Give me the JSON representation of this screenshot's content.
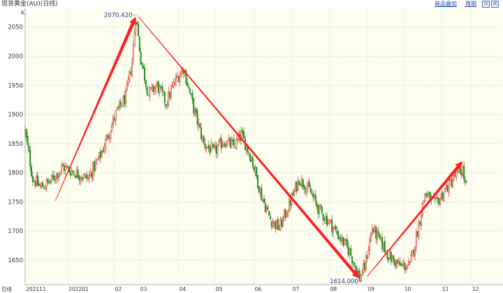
{
  "header": {
    "title": "现货黄金(AU)(日线)",
    "link_add": "商品叠加",
    "link_period": "周期",
    "btn_a": "⊟",
    "btn_b": "⊞"
  },
  "chart_data": {
    "type": "candlestick",
    "unit_label": "K",
    "ylim": [
      1608,
      2082
    ],
    "y_ticks": [
      1650,
      1700,
      1750,
      1800,
      1850,
      1900,
      1950,
      2000,
      2050
    ],
    "x_tick_labels": [
      "202111",
      "202201",
      "02",
      "03",
      "04",
      "05",
      "06",
      "07",
      "08",
      "09",
      "10",
      "11",
      "12"
    ],
    "corner_label": "日线",
    "annotations": {
      "high": "2070.420",
      "low": "1614.000"
    },
    "anchors": [
      [
        0,
        1870
      ],
      [
        6,
        1790
      ],
      [
        12,
        1775
      ],
      [
        20,
        1785
      ],
      [
        30,
        1810
      ],
      [
        40,
        1800
      ],
      [
        50,
        1790
      ],
      [
        60,
        1830
      ],
      [
        72,
        1900
      ],
      [
        80,
        1930
      ],
      [
        85,
        1990
      ],
      [
        88,
        2070
      ],
      [
        92,
        1995
      ],
      [
        98,
        1935
      ],
      [
        105,
        1950
      ],
      [
        112,
        1920
      ],
      [
        120,
        1960
      ],
      [
        126,
        1980
      ],
      [
        134,
        1910
      ],
      [
        142,
        1850
      ],
      [
        150,
        1835
      ],
      [
        158,
        1855
      ],
      [
        166,
        1845
      ],
      [
        172,
        1865
      ],
      [
        180,
        1825
      ],
      [
        188,
        1760
      ],
      [
        195,
        1720
      ],
      [
        202,
        1705
      ],
      [
        210,
        1745
      ],
      [
        218,
        1790
      ],
      [
        226,
        1770
      ],
      [
        234,
        1735
      ],
      [
        242,
        1715
      ],
      [
        250,
        1690
      ],
      [
        258,
        1665
      ],
      [
        266,
        1620
      ],
      [
        270,
        1638
      ],
      [
        276,
        1705
      ],
      [
        283,
        1680
      ],
      [
        290,
        1655
      ],
      [
        298,
        1640
      ],
      [
        306,
        1640
      ],
      [
        312,
        1700
      ],
      [
        318,
        1765
      ],
      [
        326,
        1745
      ],
      [
        334,
        1770
      ],
      [
        342,
        1795
      ],
      [
        348,
        1805
      ],
      [
        350,
        1778
      ]
    ]
  }
}
